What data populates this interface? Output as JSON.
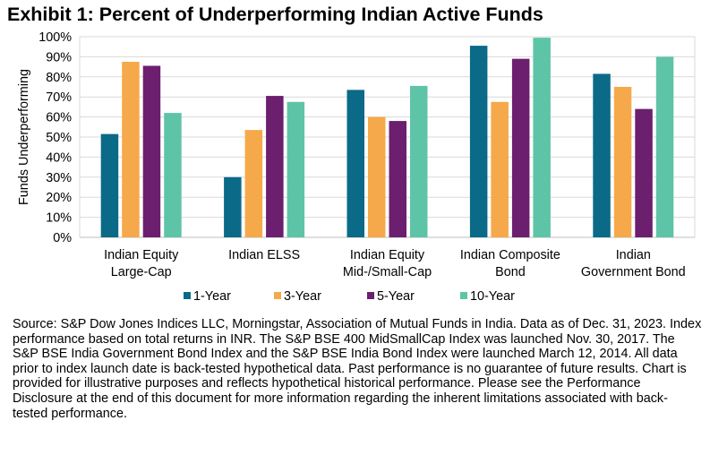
{
  "title": "Exhibit 1: Percent of Underperforming Indian Active Funds",
  "chart_data": {
    "type": "bar",
    "ylabel": "Funds Underperforming",
    "xlabel": "",
    "ylim": [
      0,
      100
    ],
    "yticks": [
      "0%",
      "10%",
      "20%",
      "30%",
      "40%",
      "50%",
      "60%",
      "70%",
      "80%",
      "90%",
      "100%"
    ],
    "grid": true,
    "legend_position": "bottom",
    "categories": [
      [
        "Indian Equity",
        "Large-Cap"
      ],
      [
        "Indian ELSS"
      ],
      [
        "Indian Equity",
        "Mid-/Small-Cap"
      ],
      [
        "Indian Composite",
        "Bond"
      ],
      [
        "Indian",
        "Government Bond"
      ]
    ],
    "series": [
      {
        "name": "1-Year",
        "color": "#0b6a87",
        "values": [
          51.5,
          30,
          73.5,
          95.5,
          81.5
        ]
      },
      {
        "name": "3-Year",
        "color": "#f6a94a",
        "values": [
          87.5,
          53.5,
          60,
          67.5,
          75
        ]
      },
      {
        "name": "5-Year",
        "color": "#6b1f6e",
        "values": [
          85.5,
          70.5,
          58,
          89,
          64
        ]
      },
      {
        "name": "10-Year",
        "color": "#5ec4a7",
        "values": [
          62,
          67.5,
          75.5,
          99.5,
          90
        ]
      }
    ]
  },
  "source_note": "Source: S&P Dow Jones Indices LLC, Morningstar, Association of Mutual Funds in India. Data as of Dec. 31, 2023. Index performance based on total returns in INR. The S&P BSE 400 MidSmallCap Index was launched Nov. 30, 2017. The S&P BSE India Government Bond Index and the S&P BSE India Bond Index were launched March 12, 2014. All data prior to index launch date is back-tested hypothetical data. Past performance is no guarantee of future results. Chart is provided for illustrative purposes and reflects hypothetical historical performance. Please see the Performance Disclosure at the end of this document for more information regarding the inherent limitations associated with back-tested performance."
}
